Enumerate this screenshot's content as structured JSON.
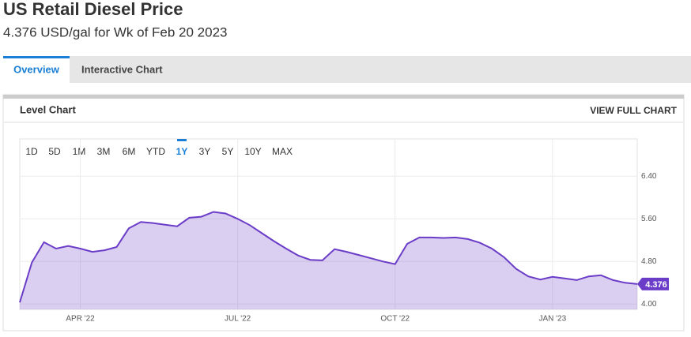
{
  "header": {
    "title": "US Retail Diesel Price",
    "subtitle": "4.376 USD/gal for Wk of Feb 20 2023"
  },
  "tabs": [
    "Overview",
    "Interactive Chart"
  ],
  "panel": {
    "title": "Level Chart",
    "link": "VIEW FULL CHART"
  },
  "range_buttons": [
    "1D",
    "5D",
    "1M",
    "3M",
    "6M",
    "YTD",
    "1Y",
    "3Y",
    "5Y",
    "10Y",
    "MAX"
  ],
  "chart_data": {
    "type": "area",
    "categories": [
      null,
      null,
      null,
      null,
      null,
      "APR '22",
      null,
      null,
      null,
      null,
      null,
      null,
      null,
      null,
      null,
      null,
      null,
      null,
      "JUL '22",
      null,
      null,
      null,
      null,
      null,
      null,
      null,
      null,
      null,
      null,
      null,
      null,
      "OCT '22",
      null,
      null,
      null,
      null,
      null,
      null,
      null,
      null,
      null,
      null,
      null,
      null,
      "JAN '23",
      null,
      null,
      null,
      null,
      null,
      null,
      null
    ],
    "series": [
      {
        "color": "#6a3cc8",
        "values": [
          4.03,
          4.78,
          5.16,
          5.04,
          5.09,
          5.04,
          4.98,
          5.01,
          5.07,
          5.42,
          5.54,
          5.52,
          5.49,
          5.46,
          5.62,
          5.64,
          5.73,
          5.7,
          5.6,
          5.48,
          5.33,
          5.18,
          5.04,
          4.91,
          4.83,
          4.82,
          5.03,
          4.98,
          4.92,
          4.86,
          4.8,
          4.75,
          5.13,
          5.25,
          5.25,
          5.24,
          5.25,
          5.22,
          5.15,
          5.04,
          4.88,
          4.66,
          4.52,
          4.46,
          4.51,
          4.48,
          4.45,
          4.52,
          4.54,
          4.45,
          4.4,
          4.376
        ]
      }
    ],
    "ylim": [
      3.9,
      7.1
    ],
    "yticks": [
      {
        "value": 4,
        "label": "4.00"
      },
      {
        "value": 4.8,
        "label": "4.80"
      },
      {
        "value": 5.6,
        "label": "5.60"
      },
      {
        "value": 6.4,
        "label": "6.40"
      }
    ],
    "grid": true
  }
}
